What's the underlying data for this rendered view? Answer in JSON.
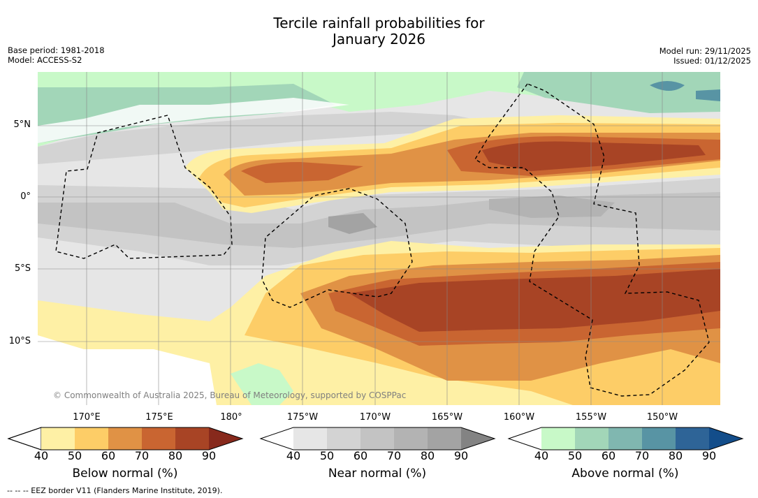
{
  "title_line1": "Tercile rainfall probabilities for",
  "title_line2": "January 2026",
  "base_period": "Base period: 1981-2018",
  "model": "Model: ACCESS-S2",
  "model_run": "Model run: 29/11/2025",
  "issued": "Issued: 01/12/2025",
  "lat_labels": [
    "5°N",
    "0°",
    "5°S",
    "10°S"
  ],
  "lon_labels": [
    "170°E",
    "175°E",
    "180°",
    "175°W",
    "170°W",
    "165°W",
    "160°W",
    "155°W",
    "150°W"
  ],
  "credit": "© Commonwealth of Australia 2025, Bureau of Meteorology, supported by COSPPac",
  "colorbars": [
    {
      "label": "Below normal (%)",
      "ticks": [
        "40",
        "50",
        "60",
        "70",
        "80",
        "90"
      ],
      "colors": [
        "#fef0a5",
        "#fdcd67",
        "#e09245",
        "#c96531",
        "#a84425",
        "#87291c"
      ]
    },
    {
      "label": "Near normal (%)",
      "ticks": [
        "40",
        "50",
        "60",
        "70",
        "80",
        "90"
      ],
      "colors": [
        "#e6e6e6",
        "#d3d3d3",
        "#c3c3c3",
        "#b3b3b3",
        "#a3a3a3",
        "#838383"
      ]
    },
    {
      "label": "Above normal (%)",
      "ticks": [
        "40",
        "50",
        "60",
        "70",
        "80",
        "90"
      ],
      "colors": [
        "#c8f9c8",
        "#a2d6b8",
        "#80b7b0",
        "#5894a4",
        "#2e6497",
        "#134d8a"
      ]
    }
  ],
  "footnote": "--  --  -- EEZ border V11 (Flanders Marine Institute, 2019)."
}
